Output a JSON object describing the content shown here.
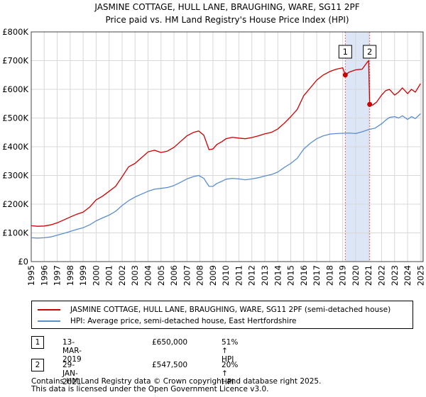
{
  "chart_data": {
    "type": "line",
    "title": "JASMINE COTTAGE, HULL LANE, BRAUGHING, WARE, SG11 2PF",
    "subtitle": "Price paid vs. HM Land Registry's House Price Index (HPI)",
    "xlim": [
      1995.0,
      2025.2
    ],
    "ylim": [
      0,
      800000
    ],
    "yticks": [
      0,
      100000,
      200000,
      300000,
      400000,
      500000,
      600000,
      700000,
      800000
    ],
    "ytick_labels": [
      "£0",
      "£100K",
      "£200K",
      "£300K",
      "£400K",
      "£500K",
      "£600K",
      "£700K",
      "£800K"
    ],
    "xticks": [
      1995,
      1996,
      1997,
      1998,
      1999,
      2000,
      2001,
      2002,
      2003,
      2004,
      2005,
      2006,
      2007,
      2008,
      2009,
      2010,
      2011,
      2012,
      2013,
      2014,
      2015,
      2016,
      2017,
      2018,
      2019,
      2020,
      2021,
      2022,
      2023,
      2024,
      2025
    ],
    "xtick_labels": [
      "1995",
      "1996",
      "1997",
      "1998",
      "1999",
      "2000",
      "2001",
      "2002",
      "2003",
      "2004",
      "2005",
      "2006",
      "2007",
      "2008",
      "2009",
      "2010",
      "2011",
      "2012",
      "2013",
      "2014",
      "2015",
      "2016",
      "2017",
      "2018",
      "2019",
      "2020",
      "2021",
      "2022",
      "2023",
      "2024",
      "2025"
    ],
    "grid": true,
    "shaded_period": [
      2019.2,
      2021.08
    ],
    "series": [
      {
        "name": "JASMINE COTTAGE, HULL LANE, BRAUGHING, WARE, SG11 2PF (semi-detached house)",
        "color": "#cc0000",
        "x": [
          1995.0,
          1995.5,
          1996.0,
          1996.5,
          1997.0,
          1997.5,
          1998.0,
          1998.5,
          1999.0,
          1999.5,
          2000.0,
          2000.5,
          2001.0,
          2001.5,
          2002.0,
          2002.5,
          2003.0,
          2003.5,
          2004.0,
          2004.5,
          2005.0,
          2005.5,
          2006.0,
          2006.5,
          2007.0,
          2007.5,
          2007.9,
          2008.3,
          2008.7,
          2009.0,
          2009.3,
          2009.7,
          2010.0,
          2010.5,
          2011.0,
          2011.5,
          2012.0,
          2012.5,
          2013.0,
          2013.5,
          2014.0,
          2014.5,
          2015.0,
          2015.5,
          2016.0,
          2016.5,
          2017.0,
          2017.5,
          2018.0,
          2018.5,
          2019.0,
          2019.2,
          2019.5,
          2020.0,
          2020.5,
          2020.9,
          2021.0,
          2021.08,
          2021.3,
          2021.6,
          2022.0,
          2022.3,
          2022.6,
          2023.0,
          2023.3,
          2023.6,
          2024.0,
          2024.3,
          2024.6,
          2025.0
        ],
        "values": [
          125000,
          123000,
          124000,
          128000,
          135000,
          145000,
          155000,
          165000,
          172000,
          190000,
          215000,
          228000,
          245000,
          262000,
          295000,
          330000,
          342000,
          362000,
          382000,
          388000,
          380000,
          385000,
          398000,
          418000,
          438000,
          450000,
          455000,
          440000,
          390000,
          392000,
          408000,
          418000,
          428000,
          433000,
          430000,
          428000,
          432000,
          438000,
          445000,
          450000,
          462000,
          482000,
          505000,
          530000,
          578000,
          605000,
          632000,
          650000,
          662000,
          670000,
          675000,
          650000,
          660000,
          668000,
          670000,
          695000,
          700000,
          547500,
          545000,
          555000,
          580000,
          595000,
          600000,
          580000,
          590000,
          605000,
          585000,
          600000,
          590000,
          620000
        ]
      },
      {
        "name": "HPI: Average price, semi-detached house, East Hertfordshire",
        "color": "#5a8ed0",
        "x": [
          1995.0,
          1995.5,
          1996.0,
          1996.5,
          1997.0,
          1997.5,
          1998.0,
          1998.5,
          1999.0,
          1999.5,
          2000.0,
          2000.5,
          2001.0,
          2001.5,
          2002.0,
          2002.5,
          2003.0,
          2003.5,
          2004.0,
          2004.5,
          2005.0,
          2005.5,
          2006.0,
          2006.5,
          2007.0,
          2007.5,
          2007.9,
          2008.3,
          2008.7,
          2009.0,
          2009.3,
          2009.7,
          2010.0,
          2010.5,
          2011.0,
          2011.5,
          2012.0,
          2012.5,
          2013.0,
          2013.5,
          2014.0,
          2014.5,
          2015.0,
          2015.5,
          2016.0,
          2016.5,
          2017.0,
          2017.5,
          2018.0,
          2018.5,
          2019.0,
          2019.5,
          2020.0,
          2020.5,
          2021.0,
          2021.5,
          2022.0,
          2022.3,
          2022.6,
          2023.0,
          2023.3,
          2023.6,
          2024.0,
          2024.3,
          2024.6,
          2025.0
        ],
        "values": [
          83000,
          82000,
          83000,
          86000,
          92000,
          98000,
          105000,
          112000,
          118000,
          128000,
          142000,
          152000,
          162000,
          175000,
          195000,
          212000,
          225000,
          235000,
          245000,
          252000,
          255000,
          258000,
          265000,
          276000,
          288000,
          296000,
          300000,
          290000,
          262000,
          262000,
          272000,
          280000,
          287000,
          290000,
          288000,
          285000,
          288000,
          292000,
          298000,
          303000,
          312000,
          328000,
          342000,
          360000,
          392000,
          412000,
          428000,
          438000,
          444000,
          446000,
          447000,
          448000,
          446000,
          452000,
          460000,
          465000,
          480000,
          492000,
          502000,
          505000,
          500000,
          508000,
          495000,
          505000,
          498000,
          515000
        ]
      }
    ],
    "transactions": [
      {
        "label": "1",
        "date": "13-MAR-2019",
        "x": 2019.2,
        "price": "£650,000",
        "value": 650000,
        "hpi": "51% ↑ HPI"
      },
      {
        "label": "2",
        "date": "29-JAN-2021",
        "x": 2021.08,
        "price": "£547,500",
        "value": 547500,
        "hpi": "20% ↑ HPI"
      }
    ]
  },
  "legend": {
    "entries": [
      {
        "label": "JASMINE COTTAGE, HULL LANE, BRAUGHING, WARE, SG11 2PF (semi-detached house)",
        "color": "#cc0000"
      },
      {
        "label": "HPI: Average price, semi-detached house, East Hertfordshire",
        "color": "#5a8ed0"
      }
    ]
  },
  "footer": {
    "line1": "Contains HM Land Registry data © Crown copyright and database right 2025.",
    "line2": "This data is licensed under the Open Government Licence v3.0."
  }
}
